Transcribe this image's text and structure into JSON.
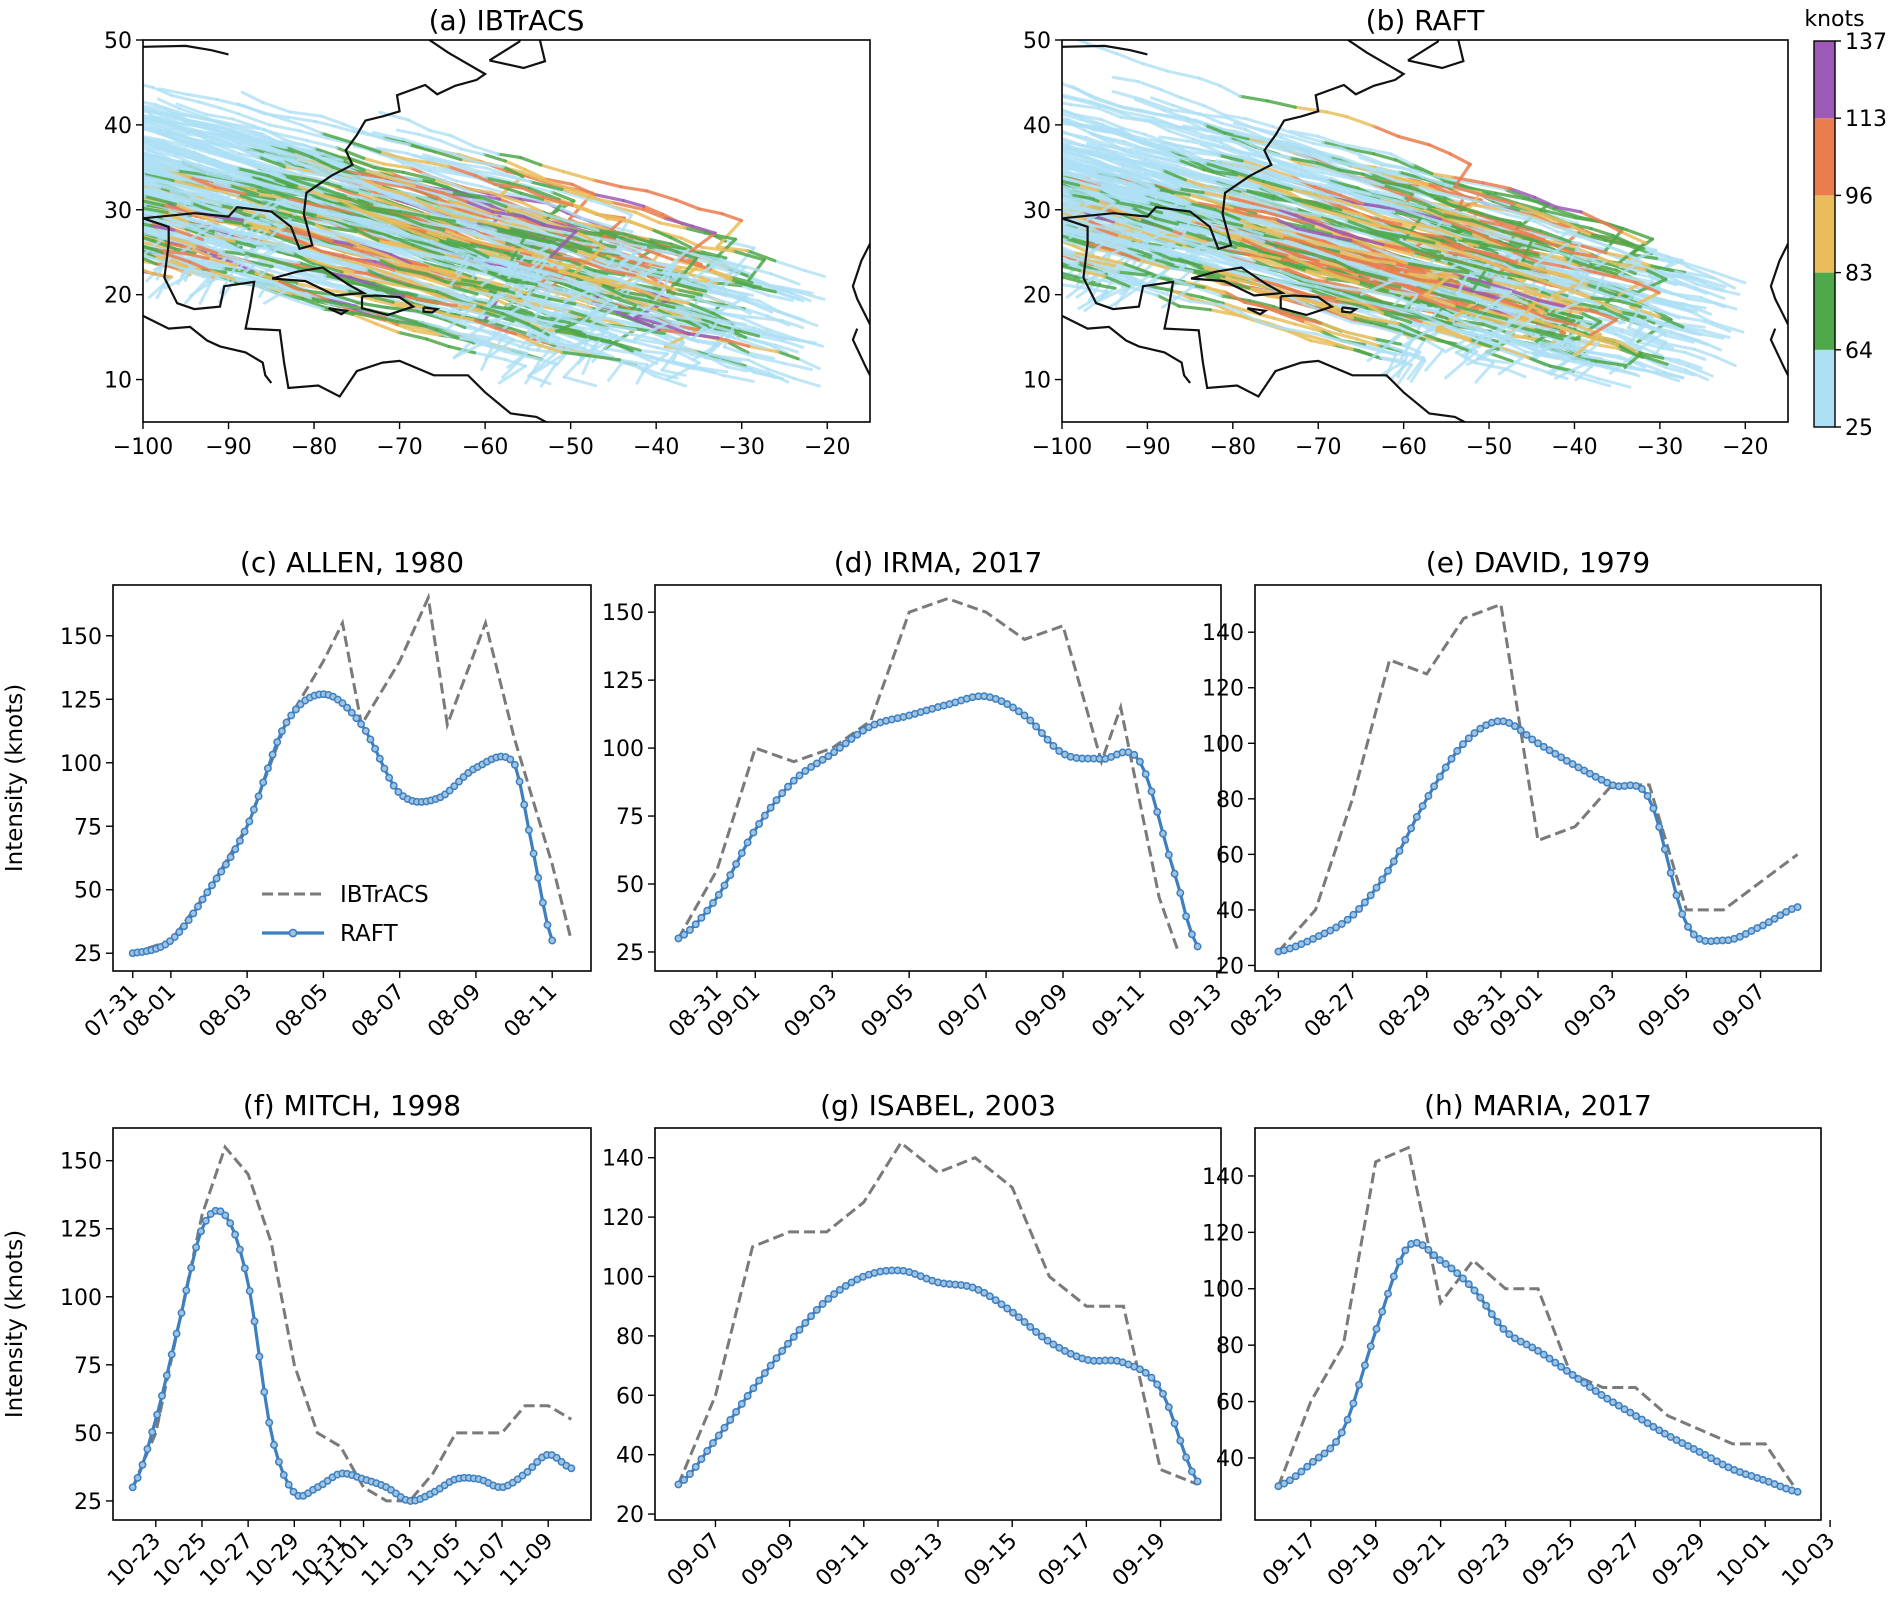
{
  "maps": [
    {
      "id": "a",
      "title": "(a) IBTrACS",
      "xticks": [
        -100,
        -90,
        -80,
        -70,
        -60,
        -50,
        -40,
        -30,
        -20
      ],
      "yticks": [
        10,
        20,
        30,
        40,
        50
      ],
      "xlim": [
        -100,
        -15
      ],
      "ylim": [
        5,
        50
      ]
    },
    {
      "id": "b",
      "title": "(b) RAFT",
      "xticks": [
        -100,
        -90,
        -80,
        -70,
        -60,
        -50,
        -40,
        -30,
        -20
      ],
      "yticks": [
        10,
        20,
        30,
        40,
        50
      ],
      "xlim": [
        -100,
        -15
      ],
      "ylim": [
        5,
        50
      ]
    }
  ],
  "colorbar": {
    "label": "knots",
    "ticks": [
      25,
      64,
      83,
      96,
      113,
      137
    ],
    "colors": [
      "#aee0f5",
      "#4fa84a",
      "#e9bd5c",
      "#ea7d4e",
      "#9c59b6"
    ]
  },
  "legend": {
    "ibtracs": "IBTrACS",
    "raft": "RAFT"
  },
  "colors": {
    "ibtracs": "#7a7a7a",
    "raft": "#3d7fbf"
  },
  "chart_data": [
    {
      "type": "line",
      "title": "(c) ALLEN, 1980",
      "xlabel": "",
      "ylabel": "Intensity (knots)",
      "xticks": [
        "07-31",
        "08-01",
        "08-03",
        "08-05",
        "08-07",
        "08-09",
        "08-11"
      ],
      "ylim": [
        18,
        170
      ],
      "yticks": [
        25,
        50,
        75,
        100,
        125,
        150
      ],
      "series": [
        {
          "name": "IBTrACS",
          "x": [
            "2023-07-31",
            "2023-08-01",
            "2023-08-02",
            "2023-08-03",
            "2023-08-04",
            "2023-08-05",
            "2023-08-05T12",
            "2023-08-06",
            "2023-08-07",
            "2023-08-07T18",
            "2023-08-08T06",
            "2023-08-09T06",
            "2023-08-10",
            "2023-08-11",
            "2023-08-11T12"
          ],
          "values": [
            25,
            30,
            50,
            75,
            115,
            140,
            155,
            115,
            140,
            165,
            115,
            155,
            110,
            60,
            30
          ]
        },
        {
          "name": "RAFT",
          "x": [
            "2023-07-31",
            "2023-08-01",
            "2023-08-02",
            "2023-08-03",
            "2023-08-04",
            "2023-08-05",
            "2023-08-06",
            "2023-08-07",
            "2023-08-08",
            "2023-08-09",
            "2023-08-10",
            "2023-08-10T12",
            "2023-08-11"
          ],
          "values": [
            25,
            30,
            50,
            75,
            115,
            127,
            115,
            88,
            86,
            98,
            100,
            65,
            30
          ]
        }
      ]
    },
    {
      "type": "line",
      "title": "(d) IRMA, 2017",
      "xlabel": "",
      "ylabel": "",
      "xticks": [
        "08-31",
        "09-01",
        "09-03",
        "09-05",
        "09-07",
        "09-09",
        "09-11",
        "09-13"
      ],
      "ylim": [
        18,
        160
      ],
      "yticks": [
        25,
        50,
        75,
        100,
        125,
        150
      ],
      "series": [
        {
          "name": "IBTrACS",
          "x": [
            "2023-08-30",
            "2023-08-31",
            "2023-09-01",
            "2023-09-02",
            "2023-09-03",
            "2023-09-04",
            "2023-09-05",
            "2023-09-06",
            "2023-09-07",
            "2023-09-08",
            "2023-09-09",
            "2023-09-10",
            "2023-09-10T12",
            "2023-09-11",
            "2023-09-11T12",
            "2023-09-12"
          ],
          "values": [
            30,
            55,
            100,
            95,
            100,
            110,
            150,
            155,
            150,
            140,
            145,
            95,
            115,
            80,
            45,
            25
          ]
        },
        {
          "name": "RAFT",
          "x": [
            "2023-08-30",
            "2023-08-31",
            "2023-09-01",
            "2023-09-02",
            "2023-09-03",
            "2023-09-04",
            "2023-09-05",
            "2023-09-06",
            "2023-09-07",
            "2023-09-08",
            "2023-09-09",
            "2023-09-10",
            "2023-09-11",
            "2023-09-12",
            "2023-09-12T12"
          ],
          "values": [
            30,
            45,
            70,
            88,
            98,
            108,
            112,
            116,
            119,
            112,
            98,
            96,
            95,
            50,
            27
          ]
        }
      ]
    },
    {
      "type": "line",
      "title": "(e) DAVID, 1979",
      "xlabel": "",
      "ylabel": "",
      "xticks": [
        "08-25",
        "08-27",
        "08-29",
        "08-31",
        "09-01",
        "09-03",
        "09-05",
        "09-07"
      ],
      "ylim": [
        18,
        157
      ],
      "yticks": [
        20,
        40,
        60,
        80,
        100,
        120,
        140
      ],
      "series": [
        {
          "name": "IBTrACS",
          "x": [
            "2023-08-25",
            "2023-08-26",
            "2023-08-27",
            "2023-08-28",
            "2023-08-29",
            "2023-08-30",
            "2023-08-31",
            "2023-09-01",
            "2023-09-02",
            "2023-09-03",
            "2023-09-04",
            "2023-09-05",
            "2023-09-06",
            "2023-09-07",
            "2023-09-08"
          ],
          "values": [
            25,
            40,
            80,
            130,
            125,
            145,
            150,
            65,
            70,
            85,
            85,
            40,
            40,
            50,
            60
          ]
        },
        {
          "name": "RAFT",
          "x": [
            "2023-08-25",
            "2023-08-26",
            "2023-08-27",
            "2023-08-28",
            "2023-08-29",
            "2023-08-30",
            "2023-08-31",
            "2023-09-01",
            "2023-09-02",
            "2023-09-03",
            "2023-09-04",
            "2023-09-05",
            "2023-09-06",
            "2023-09-07",
            "2023-09-08"
          ],
          "values": [
            25,
            30,
            38,
            55,
            80,
            100,
            108,
            100,
            92,
            85,
            80,
            35,
            29,
            34,
            41
          ]
        }
      ]
    },
    {
      "type": "line",
      "title": "(f) MITCH, 1998",
      "xlabel": "",
      "ylabel": "Intensity (knots)",
      "xticks": [
        "10-23",
        "10-25",
        "10-27",
        "10-29",
        "10-31",
        "11-01",
        "11-03",
        "11-05",
        "11-07",
        "11-09"
      ],
      "ylim": [
        18,
        162
      ],
      "yticks": [
        25,
        50,
        75,
        100,
        125,
        150
      ],
      "series": [
        {
          "name": "IBTrACS",
          "x": [
            "2023-10-22",
            "2023-10-23",
            "2023-10-24",
            "2023-10-25",
            "2023-10-26",
            "2023-10-27",
            "2023-10-28",
            "2023-10-29",
            "2023-10-30",
            "2023-10-31",
            "2023-11-01",
            "2023-11-02",
            "2023-11-03",
            "2023-11-04",
            "2023-11-05",
            "2023-11-06",
            "2023-11-07",
            "2023-11-08",
            "2023-11-09",
            "2023-11-10"
          ],
          "values": [
            30,
            50,
            90,
            130,
            155,
            145,
            120,
            75,
            50,
            45,
            30,
            25,
            25,
            35,
            50,
            50,
            50,
            60,
            60,
            55
          ]
        },
        {
          "name": "RAFT",
          "x": [
            "2023-10-22",
            "2023-10-23",
            "2023-10-24",
            "2023-10-25",
            "2023-10-26",
            "2023-10-27",
            "2023-10-28",
            "2023-10-29",
            "2023-10-30",
            "2023-10-31",
            "2023-11-01",
            "2023-11-02",
            "2023-11-03",
            "2023-11-04",
            "2023-11-05",
            "2023-11-06",
            "2023-11-07",
            "2023-11-08",
            "2023-11-09",
            "2023-11-10"
          ],
          "values": [
            30,
            55,
            90,
            125,
            130,
            105,
            50,
            28,
            30,
            35,
            33,
            30,
            25,
            28,
            33,
            33,
            30,
            35,
            42,
            37
          ]
        }
      ]
    },
    {
      "type": "line",
      "title": "(g) ISABEL, 2003",
      "xlabel": "",
      "ylabel": "",
      "xticks": [
        "09-07",
        "09-09",
        "09-11",
        "09-13",
        "09-15",
        "09-17",
        "09-19"
      ],
      "ylim": [
        18,
        150
      ],
      "yticks": [
        20,
        40,
        60,
        80,
        100,
        120,
        140
      ],
      "series": [
        {
          "name": "IBTrACS",
          "x": [
            "2023-09-06",
            "2023-09-07",
            "2023-09-08",
            "2023-09-09",
            "2023-09-10",
            "2023-09-11",
            "2023-09-12",
            "2023-09-13",
            "2023-09-14",
            "2023-09-15",
            "2023-09-16",
            "2023-09-17",
            "2023-09-18",
            "2023-09-19",
            "2023-09-20"
          ],
          "values": [
            30,
            60,
            110,
            115,
            115,
            125,
            145,
            135,
            140,
            130,
            100,
            90,
            90,
            35,
            30
          ]
        },
        {
          "name": "RAFT",
          "x": [
            "2023-09-06",
            "2023-09-07",
            "2023-09-08",
            "2023-09-09",
            "2023-09-10",
            "2023-09-11",
            "2023-09-12",
            "2023-09-13",
            "2023-09-14",
            "2023-09-15",
            "2023-09-16",
            "2023-09-17",
            "2023-09-18",
            "2023-09-19",
            "2023-09-20"
          ],
          "values": [
            30,
            45,
            62,
            78,
            92,
            100,
            102,
            98,
            96,
            88,
            78,
            72,
            71,
            62,
            31
          ]
        }
      ]
    },
    {
      "type": "line",
      "title": "(h) MARIA, 2017",
      "xlabel": "",
      "ylabel": "",
      "xticks": [
        "09-17",
        "09-19",
        "09-21",
        "09-23",
        "09-25",
        "09-27",
        "09-29",
        "10-01",
        "10-03"
      ],
      "ylim": [
        18,
        157
      ],
      "yticks": [
        40,
        60,
        80,
        100,
        120,
        140
      ],
      "series": [
        {
          "name": "IBTrACS",
          "x": [
            "2023-09-16",
            "2023-09-17",
            "2023-09-18",
            "2023-09-19",
            "2023-09-20",
            "2023-09-21",
            "2023-09-22",
            "2023-09-23",
            "2023-09-24",
            "2023-09-25",
            "2023-09-26",
            "2023-09-27",
            "2023-09-28",
            "2023-09-29",
            "2023-09-30",
            "2023-10-01",
            "2023-10-02"
          ],
          "values": [
            30,
            60,
            80,
            145,
            150,
            95,
            110,
            100,
            100,
            70,
            65,
            65,
            55,
            50,
            45,
            45,
            28
          ]
        },
        {
          "name": "RAFT",
          "x": [
            "2023-09-16",
            "2023-09-17",
            "2023-09-18",
            "2023-09-19",
            "2023-09-20",
            "2023-09-21",
            "2023-09-22",
            "2023-09-23",
            "2023-09-24",
            "2023-09-25",
            "2023-09-26",
            "2023-09-27",
            "2023-09-28",
            "2023-09-29",
            "2023-09-30",
            "2023-10-01",
            "2023-10-02"
          ],
          "values": [
            30,
            38,
            50,
            85,
            115,
            110,
            100,
            85,
            78,
            70,
            62,
            55,
            48,
            42,
            36,
            32,
            28
          ]
        }
      ]
    }
  ]
}
